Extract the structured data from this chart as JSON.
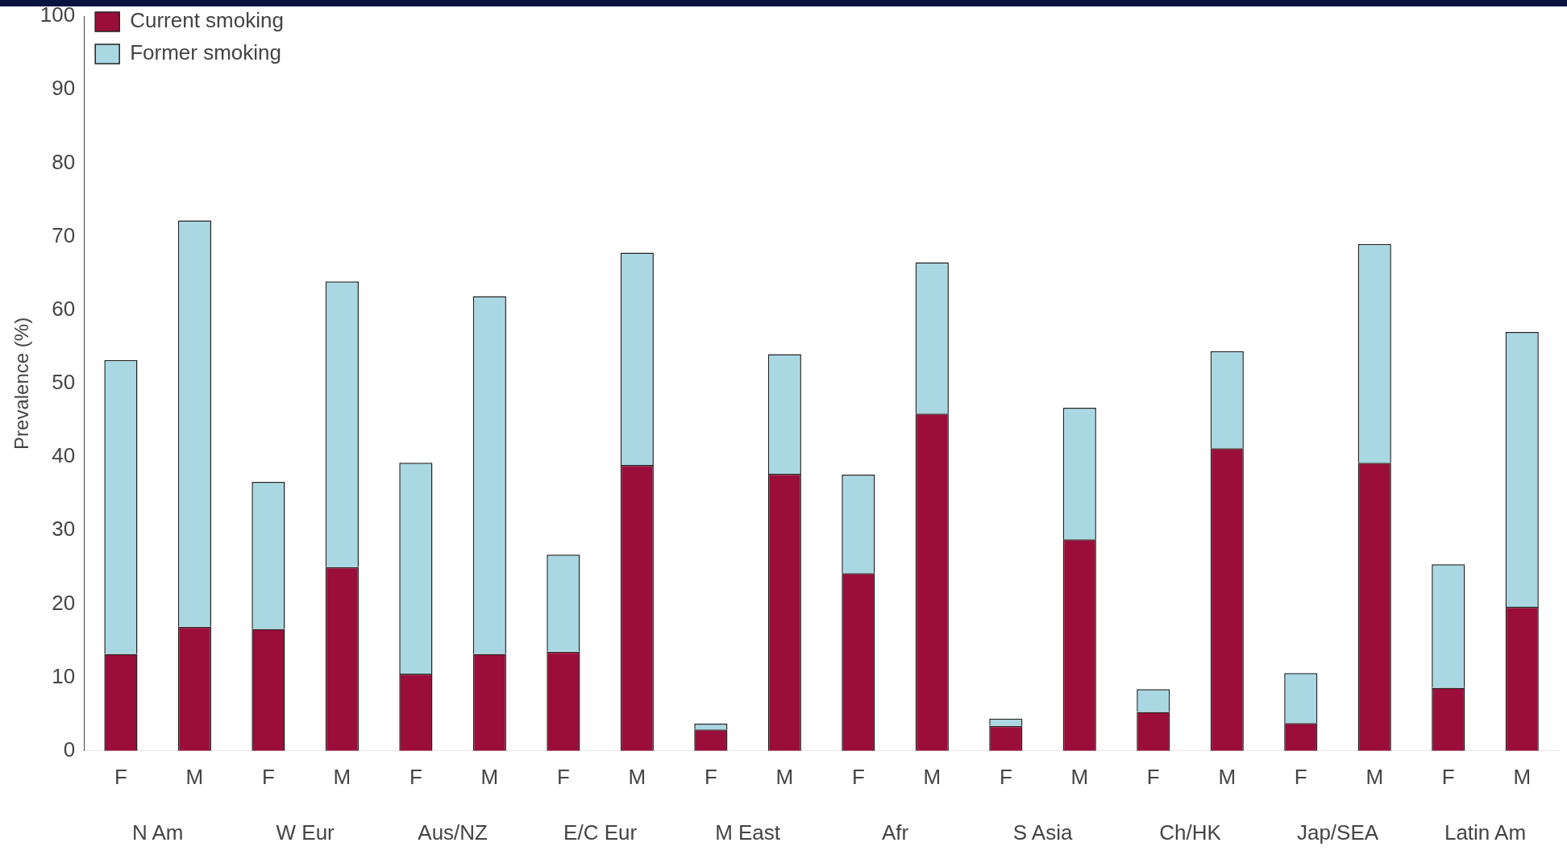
{
  "chart_data": {
    "type": "bar",
    "stacked": true,
    "ylabel": "Prevalence (%)",
    "categories": [
      "F",
      "M",
      "F",
      "M",
      "F",
      "M",
      "F",
      "M",
      "F",
      "M",
      "F",
      "M",
      "F",
      "M",
      "F",
      "M",
      "F",
      "M",
      "F",
      "M"
    ],
    "series": [
      {
        "name": "Current smoking",
        "color": "#9b0d3a",
        "values": [
          13.2,
          16.9,
          16.6,
          25,
          10.5,
          13.2,
          13.5,
          38.9,
          2.9,
          37.7,
          24.2,
          45.9,
          3.4,
          28.8,
          5.3,
          41.2,
          3.8,
          39.2,
          8.6,
          19.6
        ]
      },
      {
        "name": "Former smoking",
        "color": "#a9d8e3",
        "values": [
          40,
          55.3,
          20,
          38.9,
          28.7,
          48.7,
          13.2,
          28.9,
          0.8,
          16.3,
          13.4,
          20.6,
          1,
          17.9,
          3.1,
          13.2,
          6.8,
          29.8,
          16.8,
          37.4
        ]
      }
    ],
    "annotations": [
      "N Am",
      "W Eur",
      "Aus/NZ",
      "E/C Eur",
      "M East",
      "Afr",
      "S Asia",
      "Ch/HK",
      "Jap/SEA",
      "Latin Am"
    ],
    "ylim": [
      0,
      100
    ],
    "yticks": [
      0,
      10,
      20,
      30,
      40,
      50,
      60,
      70,
      80,
      90,
      100
    ],
    "grid": false,
    "legend": "top left"
  }
}
